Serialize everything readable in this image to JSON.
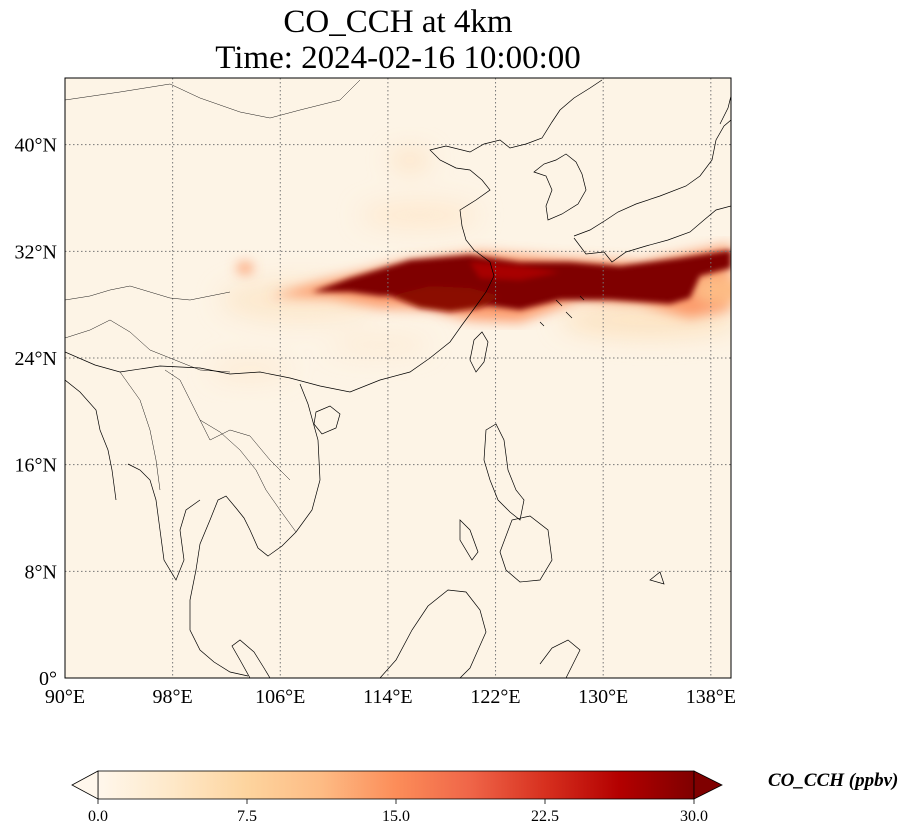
{
  "title": {
    "line1": "CO_CCH at 4km",
    "line2": "Time: 2024-02-16 10:00:00"
  },
  "map": {
    "projection": "PlateCarree",
    "lon_range": [
      90,
      139.5
    ],
    "lat_range": [
      0,
      45
    ],
    "gridlines": "dotted",
    "lon_ticks": [
      {
        "value": 90,
        "label": "90°E"
      },
      {
        "value": 98,
        "label": "98°E"
      },
      {
        "value": 106,
        "label": "106°E"
      },
      {
        "value": 114,
        "label": "114°E"
      },
      {
        "value": 122,
        "label": "122°E"
      },
      {
        "value": 130,
        "label": "130°E"
      },
      {
        "value": 138,
        "label": "138°E"
      }
    ],
    "lat_ticks": [
      {
        "value": 0,
        "label": "0°"
      },
      {
        "value": 8,
        "label": "8°N"
      },
      {
        "value": 16,
        "label": "16°N"
      },
      {
        "value": 24,
        "label": "24°N"
      },
      {
        "value": 32,
        "label": "32°N"
      },
      {
        "value": 40,
        "label": "40°N"
      }
    ],
    "field_description_colors": {
      "background": "#fdf4e6",
      "plume_core": "#7f0000",
      "plume_edge": "#fdd49e"
    }
  },
  "colorbar": {
    "label": "CO_CCH (ppbv)",
    "min": 0.0,
    "max": 30.0,
    "extend": "both",
    "colormap": "OrRd",
    "ticks": [
      "0.0",
      "7.5",
      "15.0",
      "22.5",
      "30.0"
    ],
    "tick_values": [
      0.0,
      7.5,
      15.0,
      22.5,
      30.0
    ],
    "stops": [
      "#fff7ec",
      "#fee8c8",
      "#fdd49e",
      "#fdbb84",
      "#fc8d59",
      "#ef6548",
      "#d7301f",
      "#b30000",
      "#7f0000"
    ]
  }
}
